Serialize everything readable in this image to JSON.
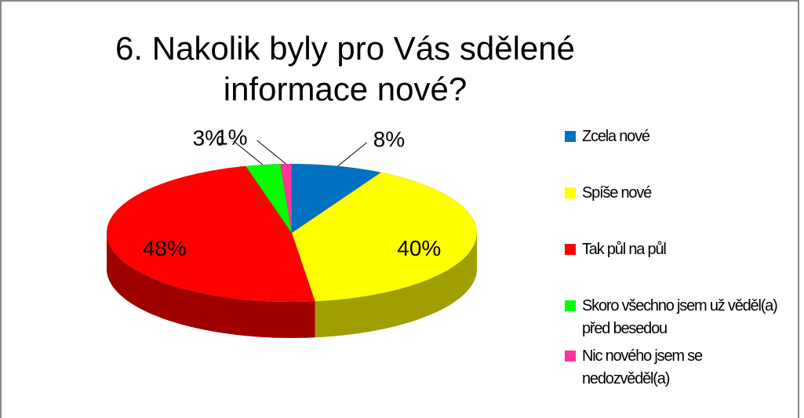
{
  "chart_data": {
    "type": "pie3d",
    "title": "6. Nakolik byly pro Vás sdělené informace nové?",
    "categories": [
      "Zcela nové",
      "Spíše nové",
      "Tak půl na půl",
      "Skoro všechno jsem už věděl(a) před besedou",
      "Nic nového jsem se nedozvěděl(a)"
    ],
    "values": [
      8,
      40,
      48,
      3,
      1
    ],
    "value_labels": [
      "8%",
      "40%",
      "48%",
      "3%",
      "1%"
    ],
    "colors": [
      "#0070c0",
      "#ffff00",
      "#ff0000",
      "#00ff00",
      "#ff3399"
    ],
    "legend": "right"
  }
}
